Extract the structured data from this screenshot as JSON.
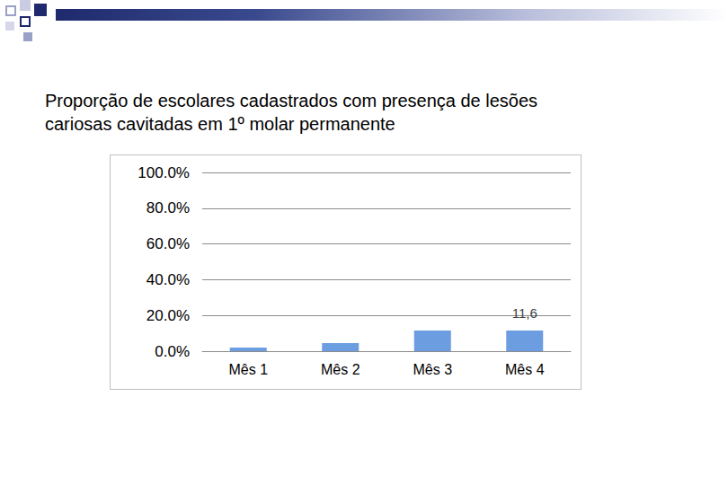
{
  "chart_data": {
    "type": "bar",
    "title": "Proporção de escolares cadastrados com presença de lesões cariosas cavitadas em 1º molar permanente",
    "categories": [
      "Mês 1",
      "Mês 2",
      "Mês 3",
      "Mês 4"
    ],
    "values": [
      2,
      4.5,
      11.6,
      11.6
    ],
    "value_labels": [
      null,
      null,
      null,
      "11,6"
    ],
    "color": "#6b9de0",
    "ylim": [
      0,
      100
    ],
    "yticks": [
      {
        "value": 0,
        "label": "0.0%"
      },
      {
        "value": 20,
        "label": "20.0%"
      },
      {
        "value": 40,
        "label": "40.0%"
      },
      {
        "value": 60,
        "label": "60.0%"
      },
      {
        "value": 80,
        "label": "80.0%"
      },
      {
        "value": 100,
        "label": "100.0%"
      }
    ],
    "grid": true
  }
}
